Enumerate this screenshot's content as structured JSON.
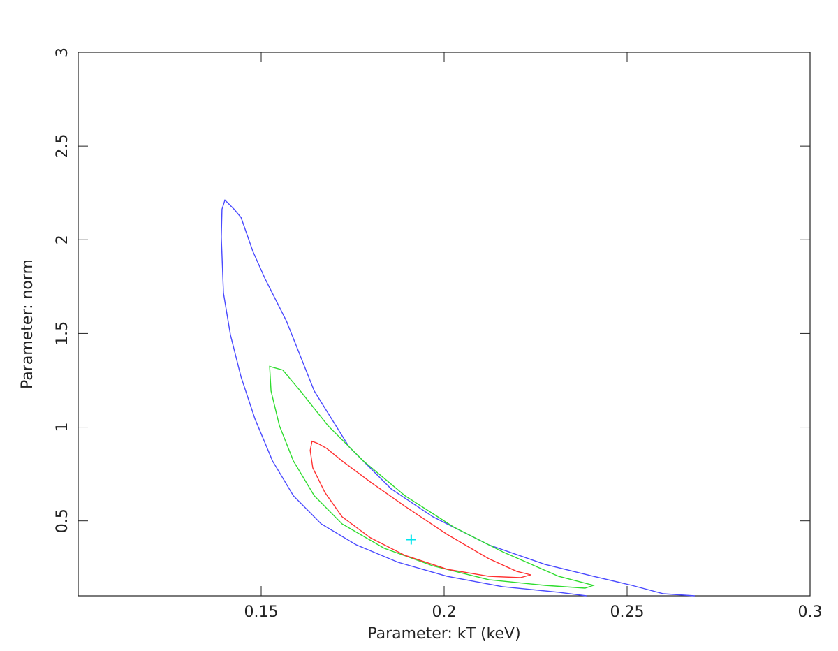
{
  "chart_data": {
    "type": "contour",
    "xlabel": "Parameter: kT (keV)",
    "ylabel": "Parameter: norm",
    "xlim": [
      0.1,
      0.3
    ],
    "ylim": [
      0.1,
      3
    ],
    "xticks": [
      0.15,
      0.2,
      0.25,
      0.3
    ],
    "yticks": [
      0.5,
      1,
      1.5,
      2,
      2.5,
      3
    ],
    "series": [
      {
        "color": "#4a4aff",
        "closed": false,
        "x": [
          0.2389,
          0.2313,
          0.216,
          0.2008,
          0.1874,
          0.176,
          0.1664,
          0.1588,
          0.1531,
          0.1483,
          0.1445,
          0.1416,
          0.1397,
          0.1391,
          0.1393,
          0.1401,
          0.1426,
          0.1445,
          0.1477,
          0.1511,
          0.1569,
          0.1645,
          0.174,
          0.1855,
          0.1969,
          0.2122,
          0.2275,
          0.2408,
          0.2513,
          0.2599,
          0.2685
        ],
        "y": [
          0.1,
          0.119,
          0.149,
          0.204,
          0.279,
          0.372,
          0.484,
          0.634,
          0.82,
          1.044,
          1.268,
          1.492,
          1.716,
          2.014,
          2.163,
          2.212,
          2.163,
          2.119,
          1.94,
          1.79,
          1.566,
          1.193,
          0.895,
          0.671,
          0.522,
          0.372,
          0.268,
          0.204,
          0.156,
          0.111,
          0.1
        ]
      },
      {
        "color": "#2edc2e",
        "closed": true,
        "x": [
          0.1523,
          0.1559,
          0.1607,
          0.1683,
          0.1779,
          0.1893,
          0.2027,
          0.216,
          0.2313,
          0.2408,
          0.2385,
          0.2275,
          0.2122,
          0.1969,
          0.1836,
          0.1721,
          0.1645,
          0.1588,
          0.155,
          0.1527
        ],
        "y": [
          1.324,
          1.305,
          1.193,
          1.007,
          0.82,
          0.634,
          0.466,
          0.335,
          0.204,
          0.156,
          0.141,
          0.156,
          0.186,
          0.26,
          0.354,
          0.484,
          0.634,
          0.82,
          1.007,
          1.193
        ]
      },
      {
        "color": "#ff3030",
        "closed": true,
        "x": [
          0.1639,
          0.1655,
          0.1679,
          0.1721,
          0.1798,
          0.1893,
          0.2008,
          0.2122,
          0.2198,
          0.2237,
          0.2208,
          0.2122,
          0.2008,
          0.1893,
          0.1798,
          0.1721,
          0.1674,
          0.1641,
          0.1634
        ],
        "y": [
          0.925,
          0.913,
          0.887,
          0.82,
          0.708,
          0.578,
          0.428,
          0.298,
          0.231,
          0.212,
          0.197,
          0.204,
          0.242,
          0.316,
          0.41,
          0.522,
          0.652,
          0.783,
          0.876
        ]
      }
    ],
    "marker": {
      "x": 0.191,
      "y": 0.4,
      "color": "#00e5ee"
    }
  }
}
